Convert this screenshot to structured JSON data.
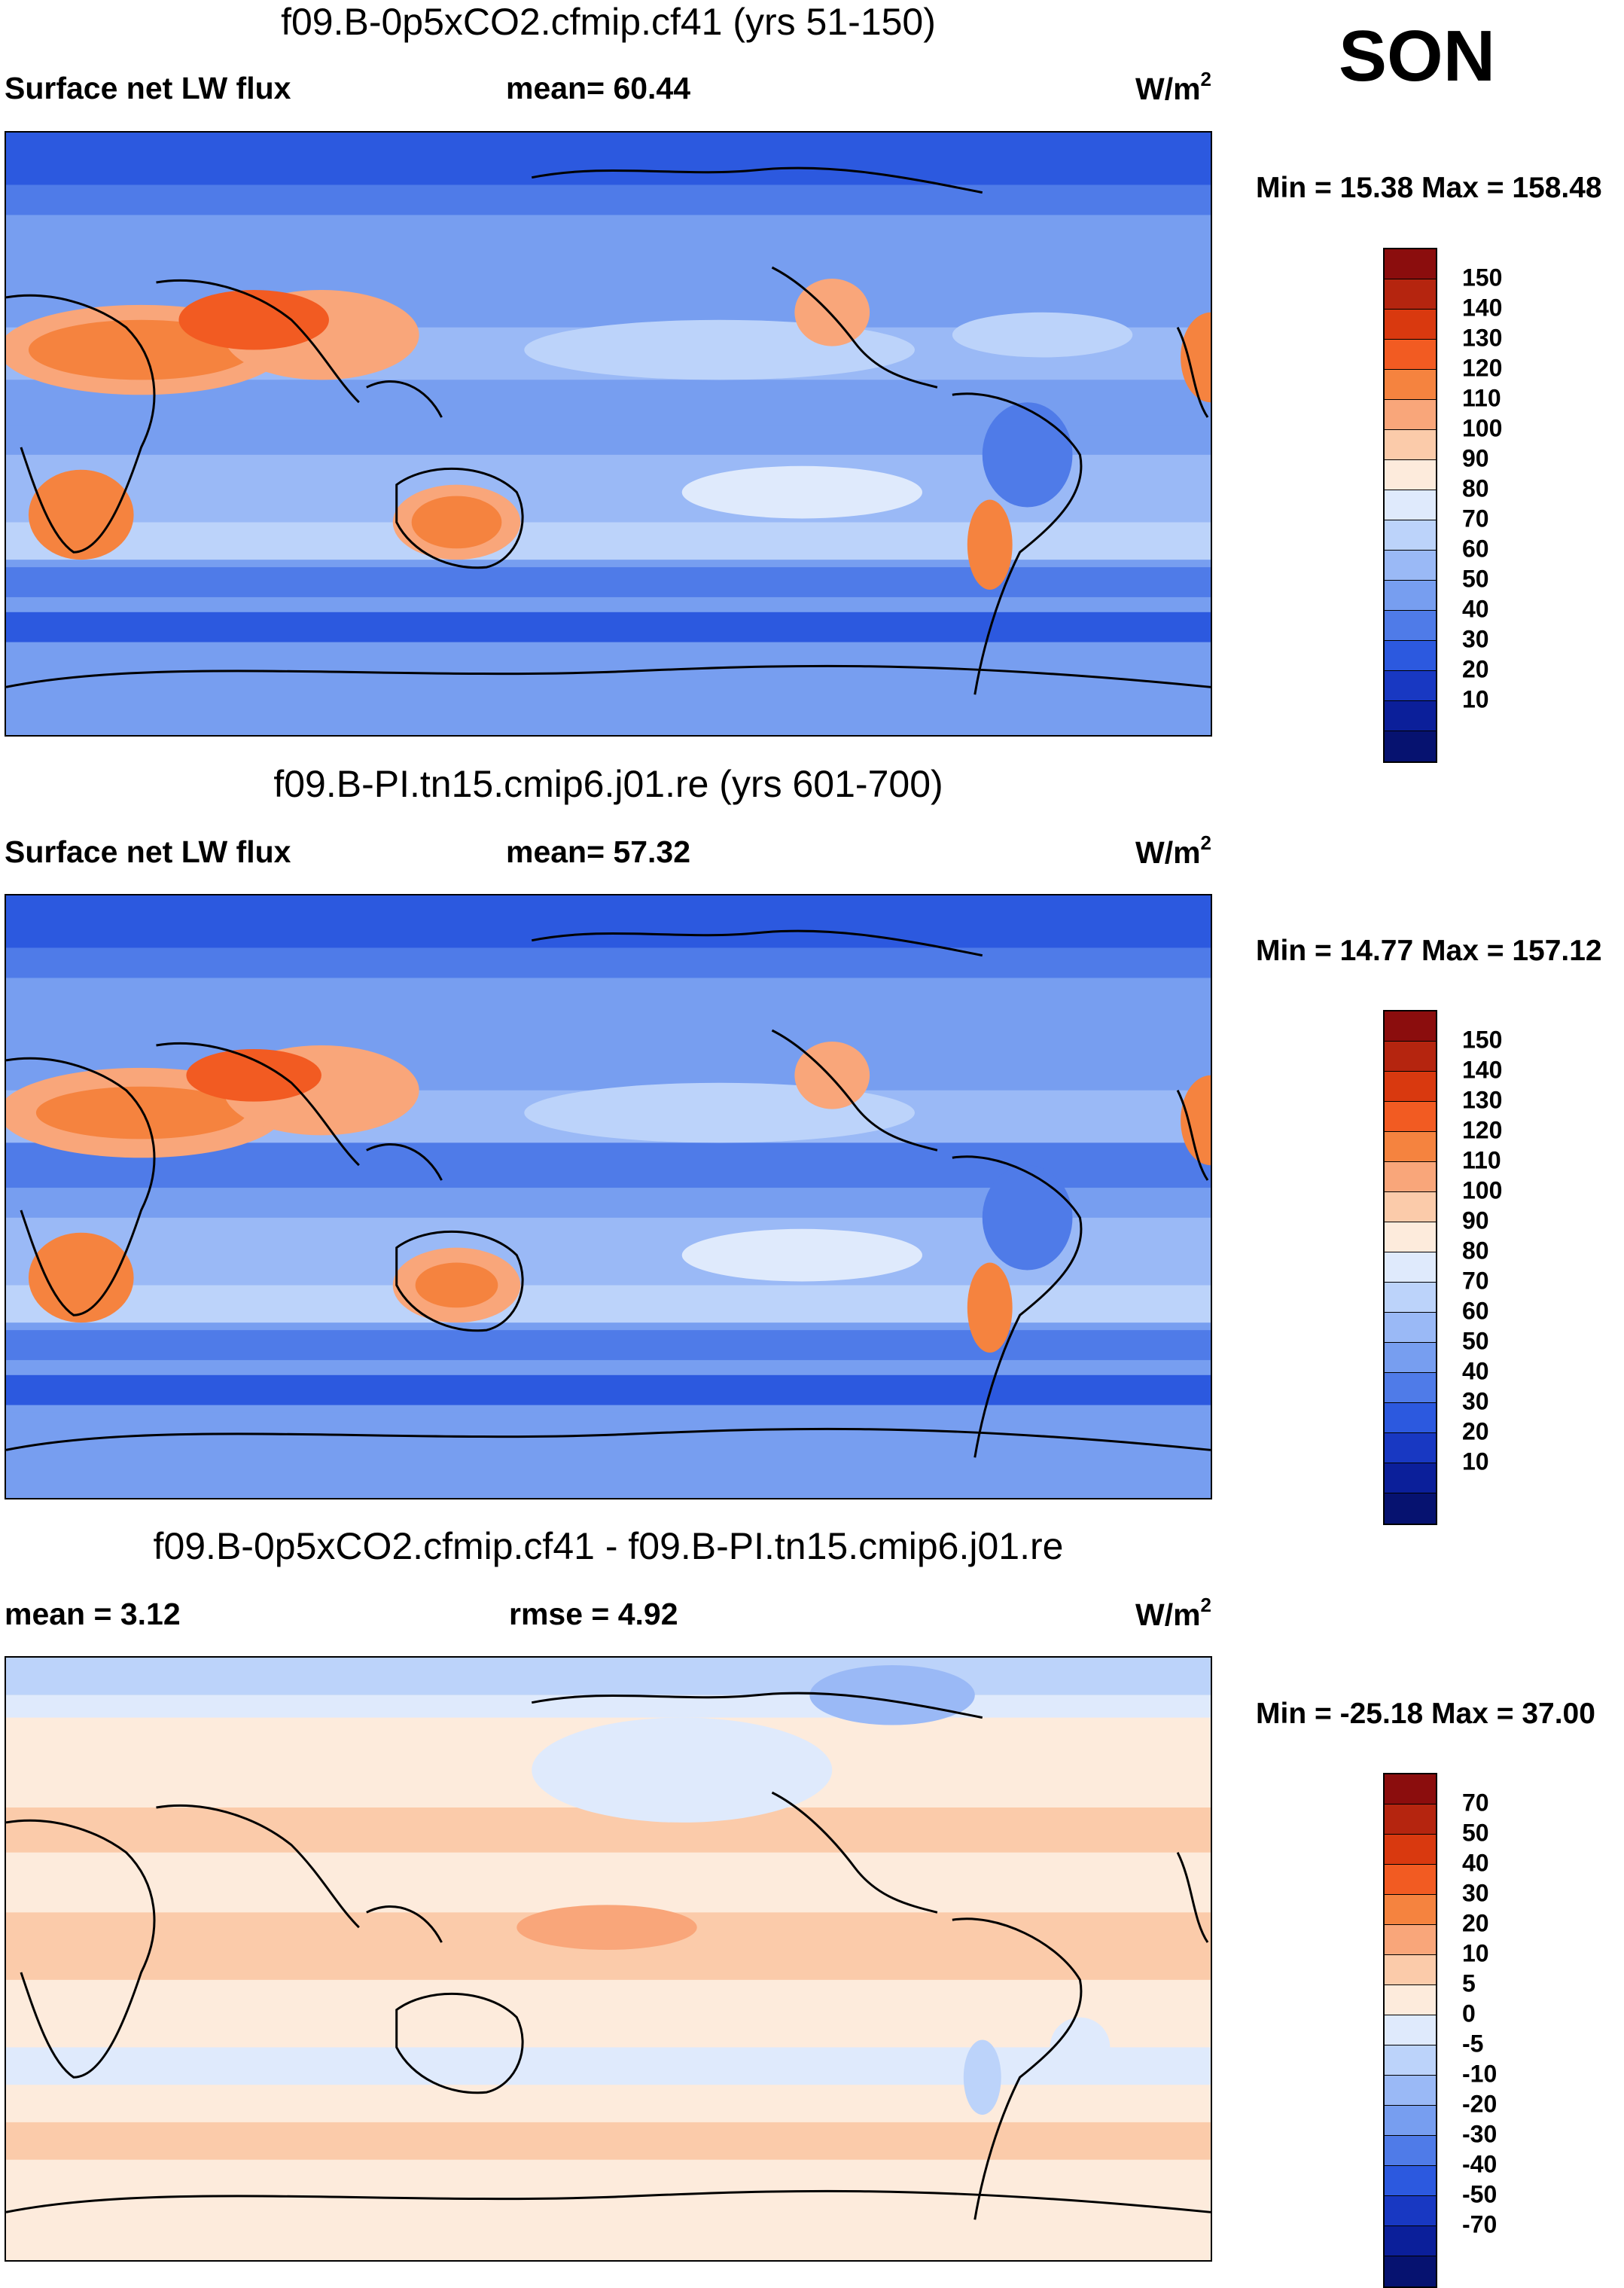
{
  "season": "SON",
  "panels": [
    {
      "title": "f09.B-0p5xCO2.cfmip.cf41 (yrs 51-150)",
      "left_label": "Surface net LW flux",
      "mid_label": "mean=  60.44",
      "unit": "W/m",
      "unit_sup": "2",
      "minmax": "Min =  15.38 Max = 158.48",
      "colorbar": {
        "colors": [
          "#8b0d0d",
          "#b5250f",
          "#d9390f",
          "#f25b22",
          "#f5833f",
          "#f9a67a",
          "#fbcbaa",
          "#fdebdc",
          "#dfeafc",
          "#bcd3fa",
          "#9ab9f6",
          "#779ef0",
          "#4f7be8",
          "#2c59df",
          "#1838c2",
          "#0b1f9a",
          "#061270"
        ],
        "ticks": [
          "150",
          "140",
          "130",
          "120",
          "110",
          "100",
          "90",
          "80",
          "70",
          "60",
          "50",
          "40",
          "30",
          "20",
          "10"
        ]
      }
    },
    {
      "title": "f09.B-PI.tn15.cmip6.j01.re (yrs 601-700)",
      "left_label": "Surface net LW flux",
      "mid_label": "mean=  57.32",
      "unit": "W/m",
      "unit_sup": "2",
      "minmax": "Min =  14.77 Max = 157.12",
      "colorbar": {
        "colors": [
          "#8b0d0d",
          "#b5250f",
          "#d9390f",
          "#f25b22",
          "#f5833f",
          "#f9a67a",
          "#fbcbaa",
          "#fdebdc",
          "#dfeafc",
          "#bcd3fa",
          "#9ab9f6",
          "#779ef0",
          "#4f7be8",
          "#2c59df",
          "#1838c2",
          "#0b1f9a",
          "#061270"
        ],
        "ticks": [
          "150",
          "140",
          "130",
          "120",
          "110",
          "100",
          "90",
          "80",
          "70",
          "60",
          "50",
          "40",
          "30",
          "20",
          "10"
        ]
      }
    },
    {
      "title": "f09.B-0p5xCO2.cfmip.cf41 - f09.B-PI.tn15.cmip6.j01.re",
      "left_label": "mean =   3.12",
      "mid_label": "rmse =   4.92",
      "unit": "W/m",
      "unit_sup": "2",
      "minmax": "Min = -25.18 Max =  37.00",
      "colorbar": {
        "colors": [
          "#8b0d0d",
          "#b5250f",
          "#d9390f",
          "#f25b22",
          "#f5833f",
          "#f9a67a",
          "#fbcbaa",
          "#fdebdc",
          "#dfeafc",
          "#bcd3fa",
          "#9ab9f6",
          "#779ef0",
          "#4f7be8",
          "#2c59df",
          "#1838c2",
          "#0b1f9a",
          "#061270"
        ],
        "ticks": [
          "70",
          "50",
          "40",
          "30",
          "20",
          "10",
          "5",
          "0",
          "-5",
          "-10",
          "-20",
          "-30",
          "-40",
          "-50",
          "-70"
        ]
      }
    }
  ]
}
